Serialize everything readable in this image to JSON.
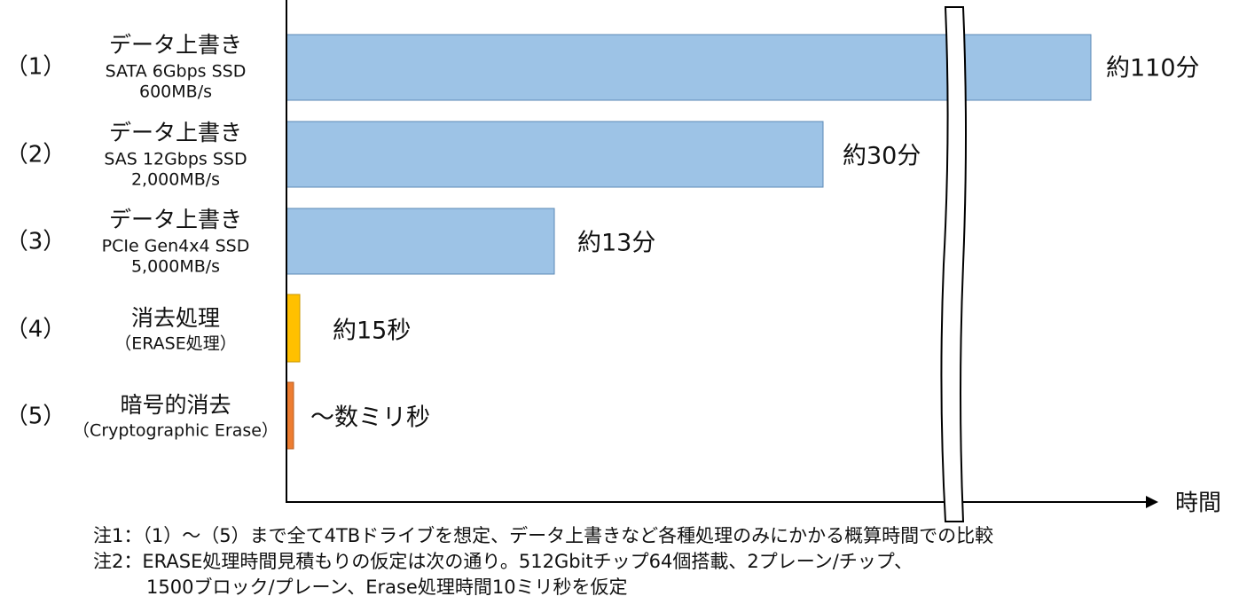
{
  "axis_label": "時間",
  "rows": [
    {
      "index": "（1）",
      "lines": [
        "データ上書き",
        "SATA 6Gbps SSD",
        "600MB/s"
      ],
      "result": "約110分"
    },
    {
      "index": "（2）",
      "lines": [
        "データ上書き",
        "SAS 12Gbps SSD",
        "2,000MB/s"
      ],
      "result": "約30分"
    },
    {
      "index": "（3）",
      "lines": [
        "データ上書き",
        "PCIe Gen4x4 SSD",
        "5,000MB/s"
      ],
      "result": "約13分"
    },
    {
      "index": "（4）",
      "lines": [
        "消去処理",
        "（ERASE処理）"
      ],
      "result": "約15秒"
    },
    {
      "index": "（5）",
      "lines": [
        "暗号的消去",
        "（Cryptographic Erase）"
      ],
      "result": "～数ミリ秒"
    }
  ],
  "notes": [
    "注1：（1）～（5）まで全て4TBドライブを想定、データ上書きなど各種処理のみにかかる概算時間での比較",
    "注2：ERASE処理時間見積もりの仮定は次の通り。512Gbitチップ64個搭載、2プレーン/チップ、",
    "1500ブロック/プレーン、Erase処理時間10ミリ秒を仮定"
  ]
}
